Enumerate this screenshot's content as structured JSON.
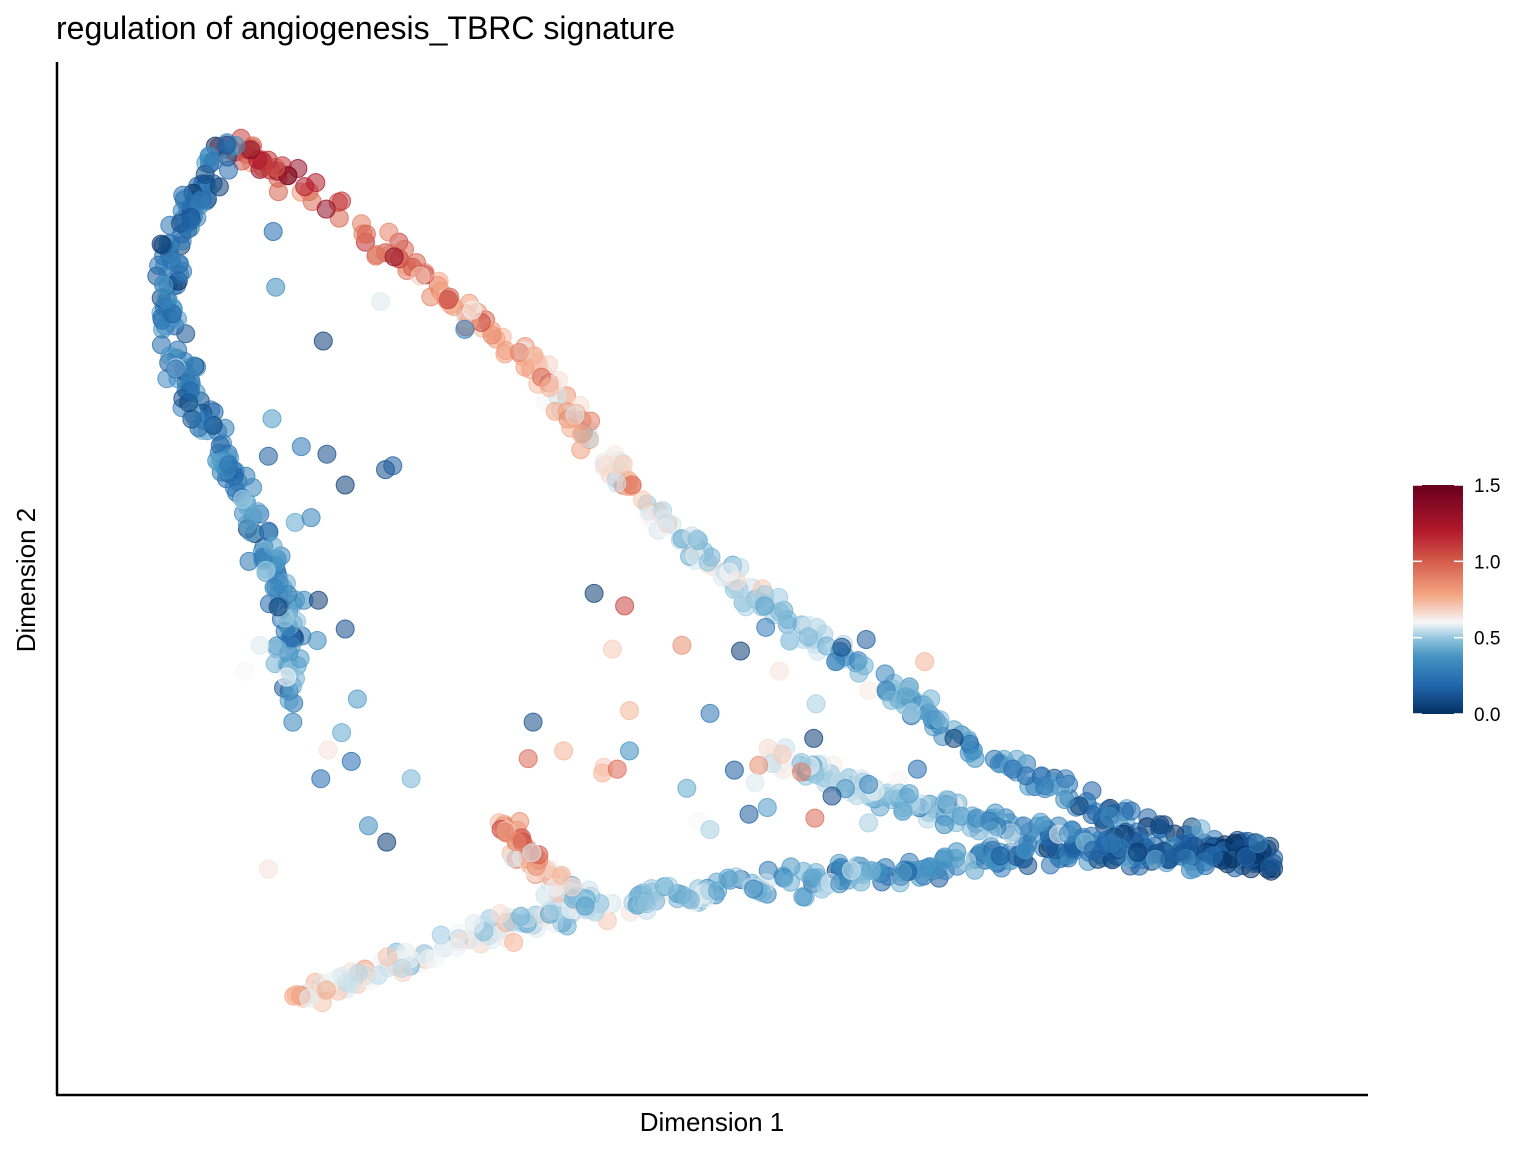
{
  "chart_data": {
    "type": "scatter",
    "title": "regulation of angiogenesis_TBRC signature",
    "xlabel": "Dimension 1",
    "ylabel": "Dimension 2",
    "x_ticks_shown": false,
    "y_ticks_shown": false,
    "xlim": [
      0,
      100
    ],
    "ylim": [
      0,
      100
    ],
    "grid": false,
    "legend_position": "right",
    "colorbar": {
      "min": 0.0,
      "max": 1.5,
      "tick_labels": [
        "0.0",
        "0.5",
        "1.0",
        "1.5"
      ],
      "tick_values": [
        0.0,
        0.5,
        1.0,
        1.5
      ],
      "colors": [
        "#053061",
        "#2166ac",
        "#4393c3",
        "#92c5de",
        "#f7f7f7",
        "#f4a582",
        "#d6604d",
        "#b2182b",
        "#67001f"
      ]
    },
    "point_opacity": 0.55,
    "branches": [
      {
        "name": "upper arc",
        "path": [
          [
            10.5,
            95.5
          ],
          [
            14,
            93
          ],
          [
            22,
            86
          ],
          [
            31,
            77
          ],
          [
            36,
            72
          ],
          [
            39,
            66.5
          ],
          [
            42,
            62
          ],
          [
            47,
            55
          ],
          [
            57,
            45
          ],
          [
            72,
            32.5
          ],
          [
            83,
            25
          ],
          [
            96,
            21
          ]
        ],
        "score_start": 1.3,
        "score_end": 0.05,
        "n": 360
      },
      {
        "name": "left branch",
        "path": [
          [
            10.5,
            95.5
          ],
          [
            6,
            85
          ],
          [
            5.5,
            77
          ],
          [
            8,
            68
          ],
          [
            12,
            58
          ],
          [
            15,
            47
          ],
          [
            16,
            37
          ]
        ],
        "score_start": 0.2,
        "score_end": 0.35,
        "n": 230
      },
      {
        "name": "bottom branch",
        "path": [
          [
            16,
            6
          ],
          [
            28,
            12
          ],
          [
            40,
            16
          ],
          [
            60,
            19
          ],
          [
            78,
            21.5
          ],
          [
            96,
            21
          ]
        ],
        "score_start": 0.85,
        "score_end": 0.05,
        "n": 330
      },
      {
        "name": "mid branch",
        "path": [
          [
            33,
            25
          ],
          [
            36,
            20
          ],
          [
            40,
            16
          ]
        ],
        "score_start": 1.1,
        "score_end": 0.6,
        "n": 70
      },
      {
        "name": "right tongue",
        "path": [
          [
            55,
            32
          ],
          [
            63,
            28
          ],
          [
            72,
            25
          ],
          [
            84,
            22
          ],
          [
            96,
            21
          ]
        ],
        "score_start": 0.7,
        "score_end": 0.05,
        "n": 200
      }
    ],
    "scattered_points": [
      [
        14.4,
        80.5,
        0.35
      ],
      [
        14.2,
        86.3,
        0.2
      ],
      [
        23,
        79,
        0.7
      ],
      [
        29.9,
        76.1,
        0.3
      ],
      [
        18.3,
        74.9,
        0.05
      ],
      [
        23.4,
        61.5,
        0.1
      ],
      [
        18.6,
        63.1,
        0.1
      ],
      [
        20.1,
        59.9,
        0.05
      ],
      [
        24,
        61.9,
        0.15
      ],
      [
        14.1,
        66.8,
        0.4
      ],
      [
        13.8,
        62.9,
        0.15
      ],
      [
        16.5,
        63.9,
        0.25
      ],
      [
        16,
        56,
        0.45
      ],
      [
        17.3,
        56.5,
        0.3
      ],
      [
        11.7,
        58.4,
        0.6
      ],
      [
        14.2,
        53.5,
        0.45
      ],
      [
        13.6,
        51,
        0.6
      ],
      [
        14.6,
        47.2,
        0.05
      ],
      [
        17.9,
        47.9,
        0.05
      ],
      [
        20.1,
        44.9,
        0.1
      ],
      [
        17.8,
        43.7,
        0.35
      ],
      [
        16.4,
        41.8,
        0.4
      ],
      [
        13.1,
        43.2,
        0.7
      ],
      [
        11.9,
        40.5,
        0.75
      ],
      [
        15.3,
        39.9,
        0.75
      ],
      [
        21.1,
        37.6,
        0.4
      ],
      [
        15.8,
        35.2,
        0.3
      ],
      [
        19.8,
        34.1,
        0.45
      ],
      [
        18.7,
        32.3,
        0.8
      ],
      [
        20.6,
        31.1,
        0.2
      ],
      [
        18.1,
        29.3,
        0.2
      ],
      [
        22,
        24.4,
        0.35
      ],
      [
        23.5,
        22.7,
        0.05
      ],
      [
        13.8,
        19.9,
        0.8
      ],
      [
        25.5,
        29.3,
        0.5
      ],
      [
        40.5,
        48.6,
        0.05
      ],
      [
        43,
        47.3,
        1.2
      ],
      [
        42,
        42.8,
        0.85
      ],
      [
        47.7,
        43.2,
        1.0
      ],
      [
        52.5,
        42.6,
        0.05
      ],
      [
        35.5,
        35.2,
        0.1
      ],
      [
        35.1,
        31.4,
        1.1
      ],
      [
        38,
        32.2,
        0.9
      ],
      [
        43.4,
        36.4,
        0.9
      ],
      [
        43.4,
        32.2,
        0.35
      ],
      [
        41.3,
        30.5,
        0.85
      ],
      [
        50,
        36.1,
        0.25
      ],
      [
        52,
        30.2,
        0.15
      ],
      [
        41.2,
        29.9,
        0.9
      ],
      [
        42.4,
        30.3,
        1.1
      ],
      [
        54,
        30.7,
        1.0
      ],
      [
        53.7,
        28.9,
        0.7
      ],
      [
        54.7,
        26.3,
        0.4
      ],
      [
        58.6,
        25.2,
        1.1
      ],
      [
        49,
        24.9,
        0.75
      ],
      [
        50,
        24,
        0.6
      ],
      [
        53.2,
        25.6,
        0.15
      ],
      [
        60,
        27.5,
        0.1
      ],
      [
        57.5,
        30,
        1.05
      ],
      [
        63,
        24.7,
        0.6
      ],
      [
        67,
        30.3,
        0.2
      ],
      [
        70,
        33.5,
        0.05
      ],
      [
        67.6,
        41.5,
        0.9
      ],
      [
        60.3,
        41.5,
        0.25
      ],
      [
        58.7,
        37.1,
        0.6
      ],
      [
        55.7,
        40.5,
        0.8
      ],
      [
        62.8,
        43.8,
        0.15
      ],
      [
        60.8,
        43,
        0.1
      ],
      [
        58.5,
        33.5,
        0.05
      ],
      [
        48.1,
        28.3,
        0.45
      ]
    ]
  }
}
